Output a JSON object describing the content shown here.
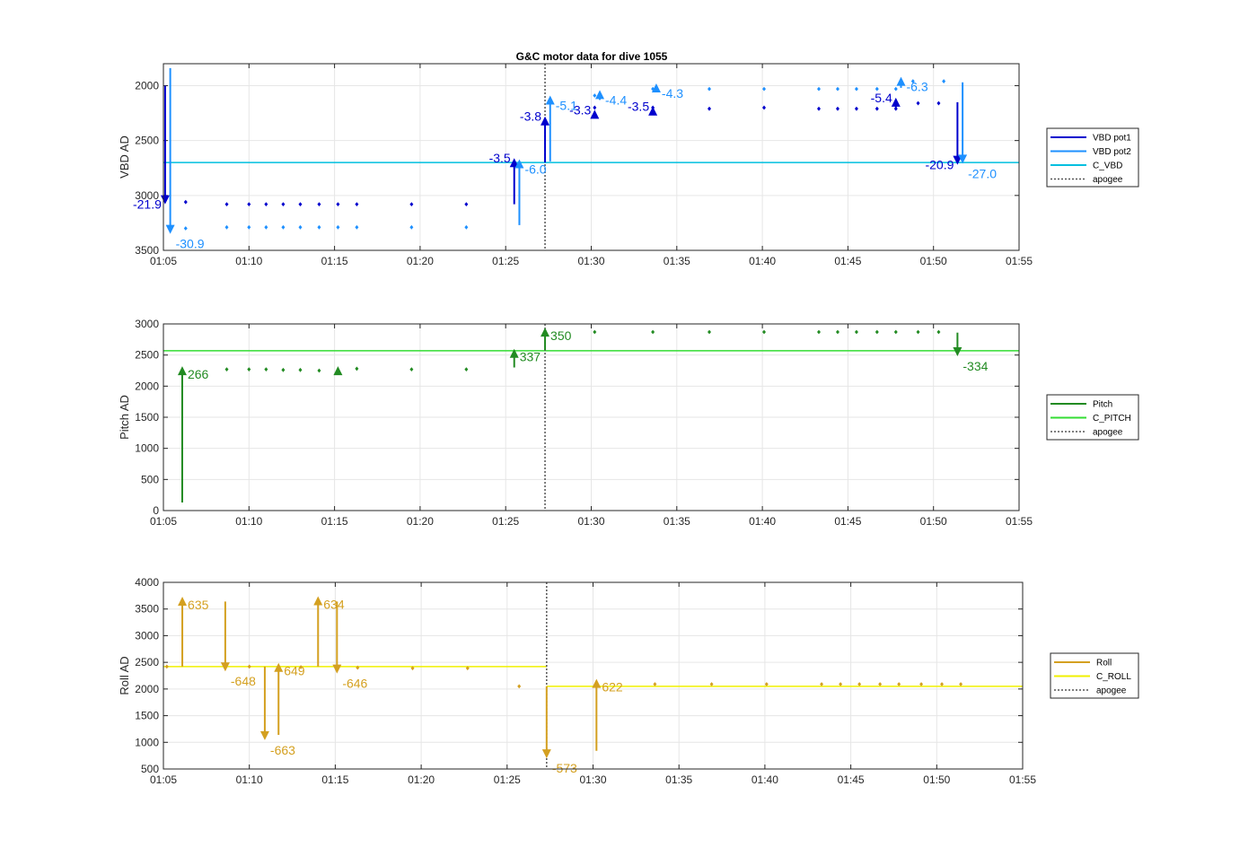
{
  "title": "G&C motor data for dive 1055",
  "colors": {
    "vbd_pot1": "#0000cd",
    "vbd_pot2": "#1e90ff",
    "c_vbd": "#00bfdf",
    "pitch": "#228b22",
    "c_pitch": "#33dd33",
    "roll": "#d4a020",
    "c_roll": "#f0f000",
    "apogee": "#555555",
    "grid": "#e6e6e6"
  },
  "chart_data": [
    {
      "type": "scatter",
      "name": "vbd",
      "ylabel": "VBD AD",
      "xlim": [
        "01:05",
        "01:55"
      ],
      "ylim": [
        1800,
        3500
      ],
      "y_reversed": true,
      "xticks": [
        "01:05",
        "01:10",
        "01:15",
        "01:20",
        "01:25",
        "01:30",
        "01:35",
        "01:40",
        "01:45",
        "01:50",
        "01:55"
      ],
      "yticks": [
        2000,
        2500,
        3000,
        3500
      ],
      "legend": [
        "VBD pot1",
        "VBD pot2",
        "C_VBD",
        "apogee"
      ],
      "legend_position": "right",
      "apogee_x": "01:27.3",
      "reference_lines": [
        {
          "name": "C_VBD",
          "y": 2700,
          "from": "01:05",
          "to": "01:55"
        }
      ],
      "series": [
        {
          "name": "VBD pot1",
          "marker": "diamond",
          "x": [
            "01:06.3",
            "01:08.7",
            "01:10",
            "01:11",
            "01:12",
            "01:13",
            "01:14.1",
            "01:15.2",
            "01:16.3",
            "01:19.5",
            "01:22.7",
            "01:30.2",
            "01:33.6",
            "01:36.9",
            "01:40.1",
            "01:43.3",
            "01:44.4",
            "01:45.5",
            "01:46.7",
            "01:47.8",
            "01:49.1",
            "01:50.3"
          ],
          "y": [
            3060,
            3080,
            3080,
            3080,
            3080,
            3080,
            3080,
            3080,
            3080,
            3080,
            3080,
            2200,
            2200,
            2210,
            2200,
            2210,
            2210,
            2210,
            2210,
            2210,
            2160,
            2160
          ]
        },
        {
          "name": "VBD pot2",
          "marker": "diamond",
          "x": [
            "01:06.3",
            "01:08.7",
            "01:10",
            "01:11",
            "01:12",
            "01:13",
            "01:14.1",
            "01:15.2",
            "01:16.3",
            "01:19.5",
            "01:22.7",
            "01:30.2",
            "01:33.6",
            "01:36.9",
            "01:40.1",
            "01:43.3",
            "01:44.4",
            "01:45.5",
            "01:46.7",
            "01:47.8",
            "01:48.8",
            "01:50.6"
          ],
          "y": [
            3300,
            3290,
            3290,
            3290,
            3290,
            3290,
            3290,
            3290,
            3290,
            3290,
            3290,
            2090,
            2030,
            2030,
            2030,
            2030,
            2030,
            2030,
            2030,
            2030,
            1960,
            1960
          ]
        }
      ],
      "arrows": [
        {
          "series": "VBD pot1",
          "x": "01:05.1",
          "from": 2000,
          "to": 3080,
          "label": "-21.9"
        },
        {
          "series": "VBD pot2",
          "x": "01:05.4",
          "from": 1840,
          "to": 3350,
          "label": "-30.9"
        },
        {
          "series": "VBD pot1",
          "x": "01:25.5",
          "from": 3080,
          "to": 2660,
          "label": "-3.5"
        },
        {
          "series": "VBD pot2",
          "x": "01:25.8",
          "from": 3270,
          "to": 2670,
          "label": "-6.0"
        },
        {
          "series": "VBD pot1",
          "x": "01:27.3",
          "from": 2700,
          "to": 2280,
          "label": "-3.8"
        },
        {
          "series": "VBD pot2",
          "x": "01:27.6",
          "from": 2690,
          "to": 2090,
          "label": "-5.1"
        },
        {
          "series": "VBD pot1",
          "x": "01:30.2",
          "from": 2260,
          "to": 2220,
          "label": "-3.3"
        },
        {
          "series": "VBD pot2",
          "x": "01:30.5",
          "from": 2130,
          "to": 2040,
          "label": "-4.4"
        },
        {
          "series": "VBD pot1",
          "x": "01:33.6",
          "from": 2230,
          "to": 2190,
          "label": "-3.5"
        },
        {
          "series": "VBD pot2",
          "x": "01:33.8",
          "from": 2060,
          "to": 1980,
          "label": "-4.3"
        },
        {
          "series": "VBD pot1",
          "x": "01:47.8",
          "from": 2200,
          "to": 2110,
          "label": "-5.4"
        },
        {
          "series": "VBD pot2",
          "x": "01:48.1",
          "from": 2020,
          "to": 1920,
          "label": "-6.3"
        },
        {
          "series": "VBD pot1",
          "x": "01:51.4",
          "from": 2150,
          "to": 2720,
          "label": "-20.9"
        },
        {
          "series": "VBD pot2",
          "x": "01:51.7",
          "from": 1970,
          "to": 2710,
          "label": "-27.0"
        }
      ]
    },
    {
      "type": "scatter",
      "name": "pitch",
      "ylabel": "Pitch AD",
      "xlim": [
        "01:05",
        "01:55"
      ],
      "ylim": [
        0,
        3000
      ],
      "xticks": [
        "01:05",
        "01:10",
        "01:15",
        "01:20",
        "01:25",
        "01:30",
        "01:35",
        "01:40",
        "01:45",
        "01:50",
        "01:55"
      ],
      "yticks": [
        0,
        500,
        1000,
        1500,
        2000,
        2500,
        3000
      ],
      "legend": [
        "Pitch",
        "C_PITCH",
        "apogee"
      ],
      "legend_position": "right",
      "apogee_x": "01:27.3",
      "reference_lines": [
        {
          "name": "C_PITCH",
          "y": 2570,
          "from": "01:05",
          "to": "01:55"
        }
      ],
      "series": [
        {
          "name": "Pitch",
          "marker": "diamond",
          "x": [
            "01:08.7",
            "01:10",
            "01:11",
            "01:12",
            "01:13",
            "01:14.1",
            "01:16.3",
            "01:19.5",
            "01:22.7",
            "01:30.2",
            "01:33.6",
            "01:36.9",
            "01:40.1",
            "01:43.3",
            "01:44.4",
            "01:45.5",
            "01:46.7",
            "01:47.8",
            "01:49.1",
            "01:50.3"
          ],
          "y": [
            2270,
            2270,
            2270,
            2260,
            2260,
            2250,
            2280,
            2270,
            2270,
            2870,
            2870,
            2870,
            2870,
            2870,
            2870,
            2870,
            2870,
            2870,
            2870,
            2870
          ]
        }
      ],
      "arrows": [
        {
          "series": "Pitch",
          "x": "01:06.1",
          "from": 130,
          "to": 2320,
          "label": "266"
        },
        {
          "series": "Pitch",
          "x": "01:15.2",
          "from": 2280,
          "to": 2320,
          "label": ""
        },
        {
          "series": "Pitch",
          "x": "01:25.5",
          "from": 2300,
          "to": 2600,
          "label": "337"
        },
        {
          "series": "Pitch",
          "x": "01:27.3",
          "from": 2580,
          "to": 2940,
          "label": "350"
        },
        {
          "series": "Pitch",
          "x": "01:51.4",
          "from": 2860,
          "to": 2480,
          "label": "-334"
        }
      ]
    },
    {
      "type": "scatter",
      "name": "roll",
      "ylabel": "Roll AD",
      "xlim": [
        "01:05",
        "01:55"
      ],
      "ylim": [
        500,
        4000
      ],
      "xticks": [
        "01:05",
        "01:10",
        "01:15",
        "01:20",
        "01:25",
        "01:30",
        "01:35",
        "01:40",
        "01:45",
        "01:50",
        "01:55"
      ],
      "yticks": [
        500,
        1000,
        1500,
        2000,
        2500,
        3000,
        3500,
        4000
      ],
      "legend": [
        "Roll",
        "C_ROLL",
        "apogee"
      ],
      "legend_position": "right",
      "apogee_x": "01:27.3",
      "reference_lines": [
        {
          "name": "C_ROLL",
          "y": 2420,
          "from": "01:05",
          "to": "01:27.3"
        },
        {
          "name": "C_ROLL",
          "y": 2050,
          "from": "01:27.3",
          "to": "01:55"
        }
      ],
      "series": [
        {
          "name": "Roll",
          "marker": "diamond",
          "x": [
            "01:05.2",
            "01:10",
            "01:13",
            "01:16.3",
            "01:19.5",
            "01:22.7",
            "01:25.7",
            "01:33.6",
            "01:36.9",
            "01:40.1",
            "01:43.3",
            "01:44.4",
            "01:45.5",
            "01:46.7",
            "01:47.8",
            "01:49.1",
            "01:50.3",
            "01:51.4"
          ],
          "y": [
            2420,
            2420,
            2410,
            2400,
            2390,
            2390,
            2050,
            2090,
            2090,
            2090,
            2090,
            2090,
            2090,
            2090,
            2090,
            2090,
            2090,
            2090
          ]
        }
      ],
      "arrows": [
        {
          "series": "Roll",
          "x": "01:06.1",
          "from": 2420,
          "to": 3730,
          "label": "635"
        },
        {
          "series": "Roll",
          "x": "01:08.6",
          "from": 3640,
          "to": 2330,
          "label": "-648"
        },
        {
          "series": "Roll",
          "x": "01:10.9",
          "from": 2420,
          "to": 1040,
          "label": "-663"
        },
        {
          "series": "Roll",
          "x": "01:11.7",
          "from": 1140,
          "to": 2490,
          "label": "649"
        },
        {
          "series": "Roll",
          "x": "01:14.0",
          "from": 2420,
          "to": 3740,
          "label": "634"
        },
        {
          "series": "Roll",
          "x": "01:15.1",
          "from": 3640,
          "to": 2290,
          "label": "-646"
        },
        {
          "series": "Roll",
          "x": "01:27.3",
          "from": 2050,
          "to": 700,
          "label": "-573"
        },
        {
          "series": "Roll",
          "x": "01:30.2",
          "from": 840,
          "to": 2190,
          "label": "622"
        }
      ]
    }
  ]
}
